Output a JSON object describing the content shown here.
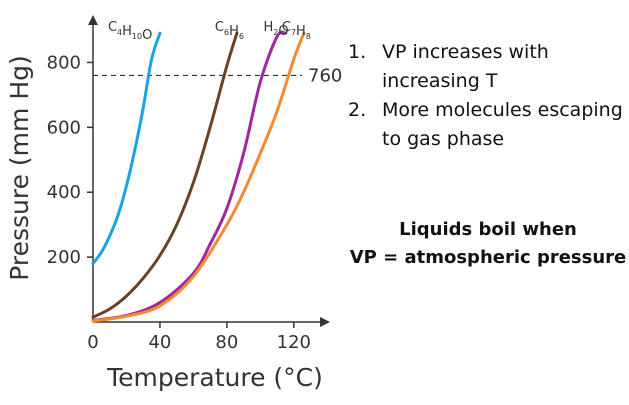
{
  "chart_data": {
    "type": "line",
    "xlabel": "Temperature (°C)",
    "ylabel": "Pressure (mm Hg)",
    "xlim": [
      0,
      130
    ],
    "ylim": [
      0,
      900
    ],
    "x_ticks": [
      0,
      40,
      80,
      120
    ],
    "y_ticks": [
      200,
      400,
      600,
      800
    ],
    "reference_line": {
      "y": 760,
      "label": "760",
      "style": "dashed"
    },
    "series": [
      {
        "name": "C4H10O",
        "label_main": [
          "C",
          "H",
          "O"
        ],
        "label_sub": [
          "4",
          "10",
          ""
        ],
        "color": "#1aa3e0",
        "x": [
          0,
          5,
          10,
          15,
          20,
          25,
          30,
          35,
          40
        ],
        "y": [
          180,
          215,
          265,
          330,
          420,
          530,
          660,
          810,
          890
        ]
      },
      {
        "name": "C6H6",
        "label_main": [
          "C",
          "H"
        ],
        "label_sub": [
          "6",
          "6"
        ],
        "color": "#6b4226",
        "x": [
          0,
          10,
          20,
          30,
          40,
          50,
          60,
          70,
          80,
          86
        ],
        "y": [
          15,
          40,
          80,
          135,
          205,
          300,
          430,
          600,
          790,
          890
        ]
      },
      {
        "name": "H2O",
        "label_main": [
          "H",
          "O"
        ],
        "label_sub": [
          "2",
          ""
        ],
        "color": "#a0269b",
        "x": [
          0,
          20,
          40,
          60,
          70,
          80,
          90,
          100,
          110,
          115
        ],
        "y": [
          5,
          20,
          60,
          150,
          240,
          350,
          520,
          740,
          880,
          890
        ]
      },
      {
        "name": "C7H8",
        "label_main": [
          "C",
          "H"
        ],
        "label_sub": [
          "7",
          "8"
        ],
        "color": "#f28a30",
        "x": [
          0,
          20,
          40,
          60,
          80,
          90,
          100,
          110,
          120,
          126
        ],
        "y": [
          3,
          18,
          50,
          140,
          300,
          400,
          520,
          650,
          810,
          890
        ]
      }
    ]
  },
  "notes": [
    {
      "num": "1.",
      "text": "VP increases with increasing T"
    },
    {
      "num": "2.",
      "text": "More molecules escaping to gas phase"
    }
  ],
  "conclusion": [
    "Liquids boil when",
    "VP = atmospheric pressure"
  ]
}
